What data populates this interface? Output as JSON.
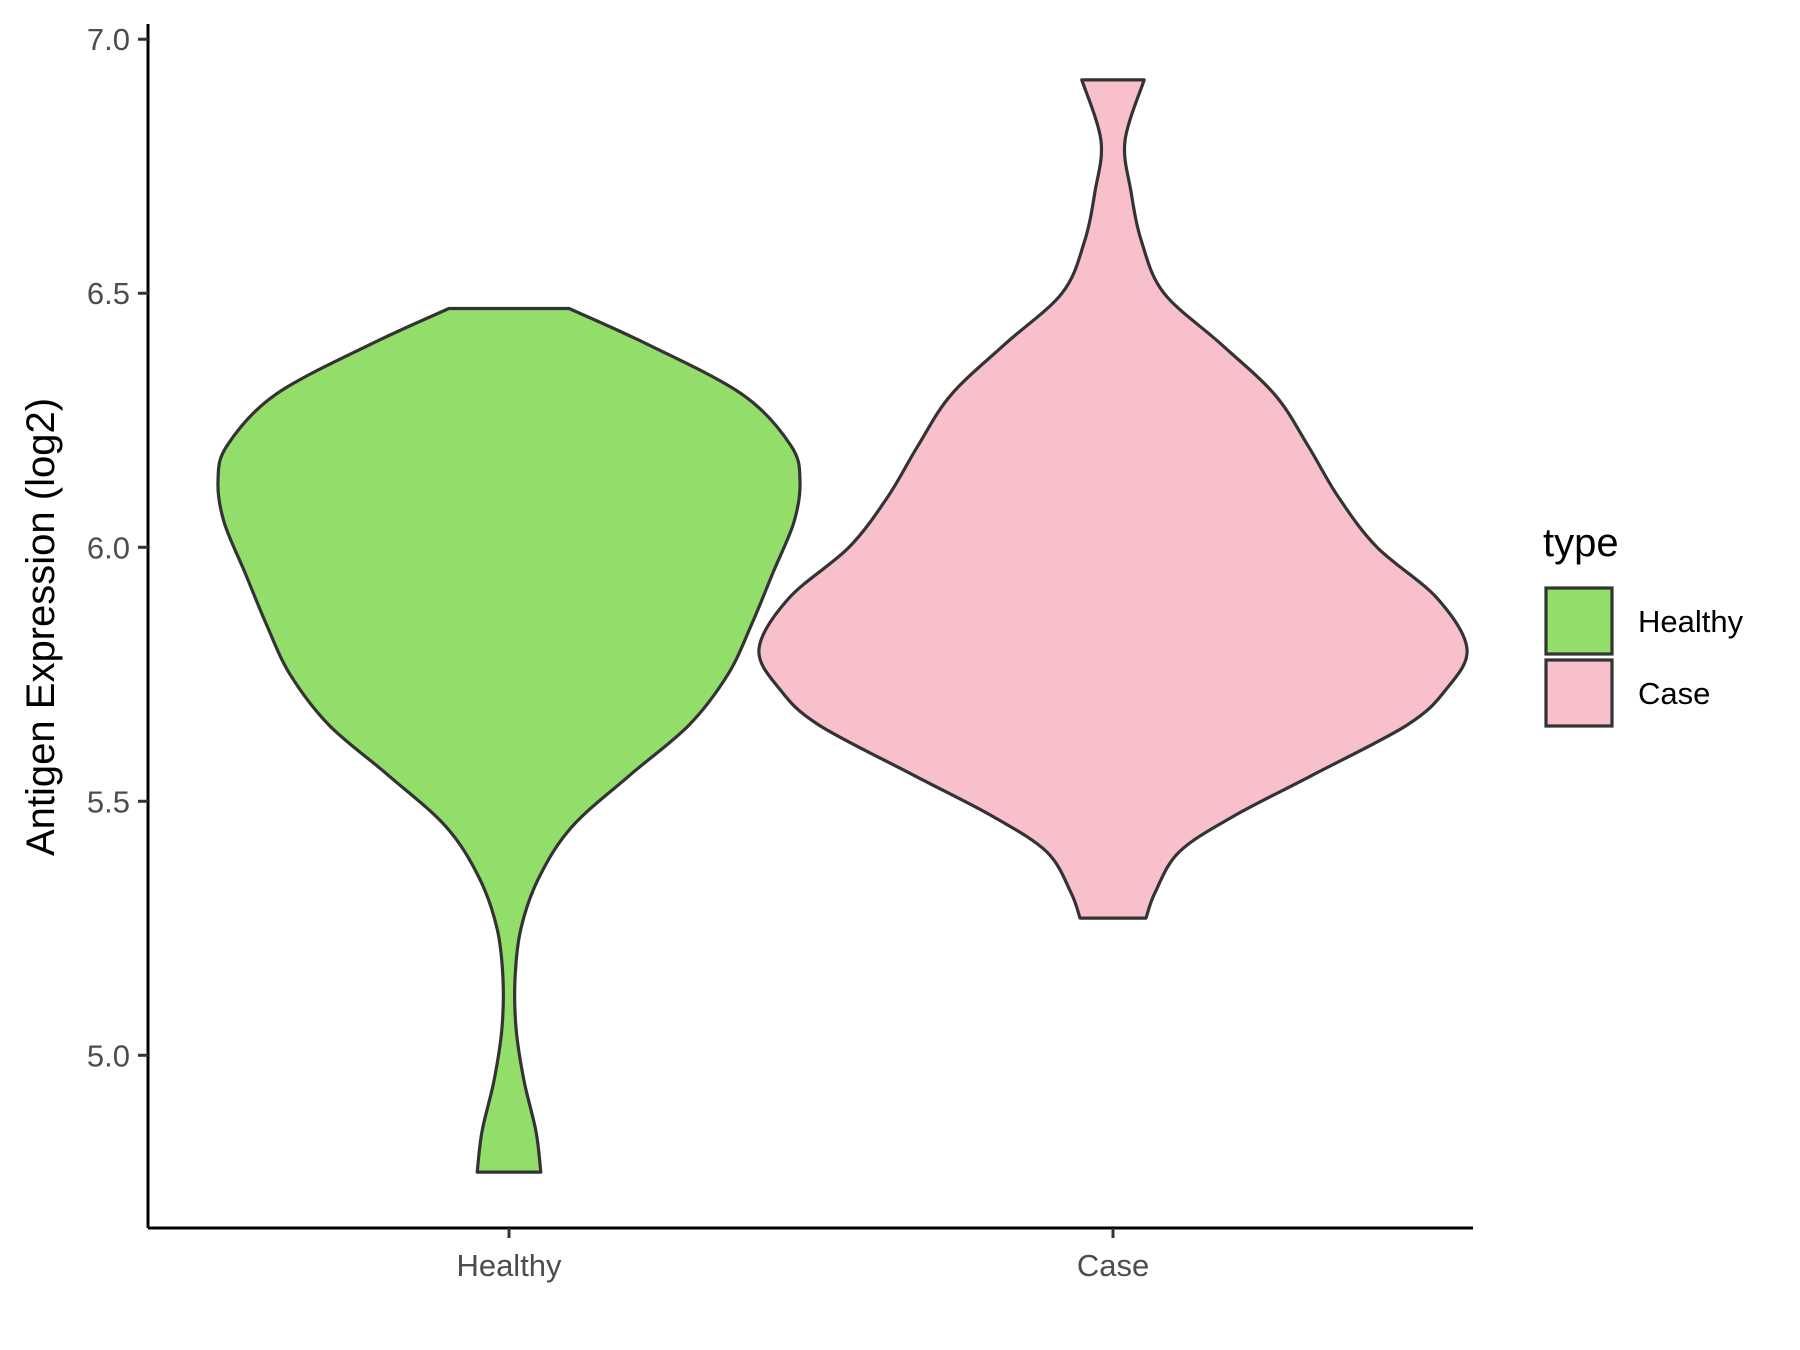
{
  "chart_data": {
    "type": "violin",
    "title": "",
    "xlabel": "",
    "ylabel": "Antigen Expression (log2)",
    "ylim": [
      4.66,
      7.03
    ],
    "yticks": [
      5.0,
      5.5,
      6.0,
      6.5,
      7.0
    ],
    "ytick_labels": [
      "5.0",
      "5.5",
      "6.0",
      "6.5",
      "7.0"
    ],
    "categories": [
      "Healthy",
      "Case"
    ],
    "grid": false,
    "legend": {
      "title": "type",
      "placement": "right"
    },
    "series": [
      {
        "name": "Healthy",
        "color": "#93dd6b",
        "min": 4.77,
        "max": 6.47,
        "density_profile": {
          "y": [
            4.77,
            4.85,
            4.95,
            5.05,
            5.15,
            5.25,
            5.35,
            5.45,
            5.55,
            5.65,
            5.75,
            5.85,
            5.95,
            6.05,
            6.13,
            6.2,
            6.3,
            6.4,
            6.47
          ],
          "half_width": [
            0.053,
            0.045,
            0.025,
            0.012,
            0.01,
            0.02,
            0.05,
            0.105,
            0.2,
            0.3,
            0.365,
            0.405,
            0.44,
            0.475,
            0.485,
            0.47,
            0.39,
            0.23,
            0.1
          ]
        }
      },
      {
        "name": "Case",
        "color": "#f8c0cb",
        "min": 5.27,
        "max": 6.92,
        "density_profile": {
          "y": [
            5.27,
            5.32,
            5.4,
            5.47,
            5.55,
            5.65,
            5.72,
            5.8,
            5.9,
            6.0,
            6.1,
            6.2,
            6.3,
            6.4,
            6.5,
            6.6,
            6.7,
            6.8,
            6.92
          ],
          "half_width": [
            0.055,
            0.07,
            0.11,
            0.2,
            0.33,
            0.49,
            0.555,
            0.59,
            0.54,
            0.44,
            0.375,
            0.325,
            0.27,
            0.18,
            0.085,
            0.048,
            0.03,
            0.02,
            0.052
          ]
        }
      }
    ]
  }
}
